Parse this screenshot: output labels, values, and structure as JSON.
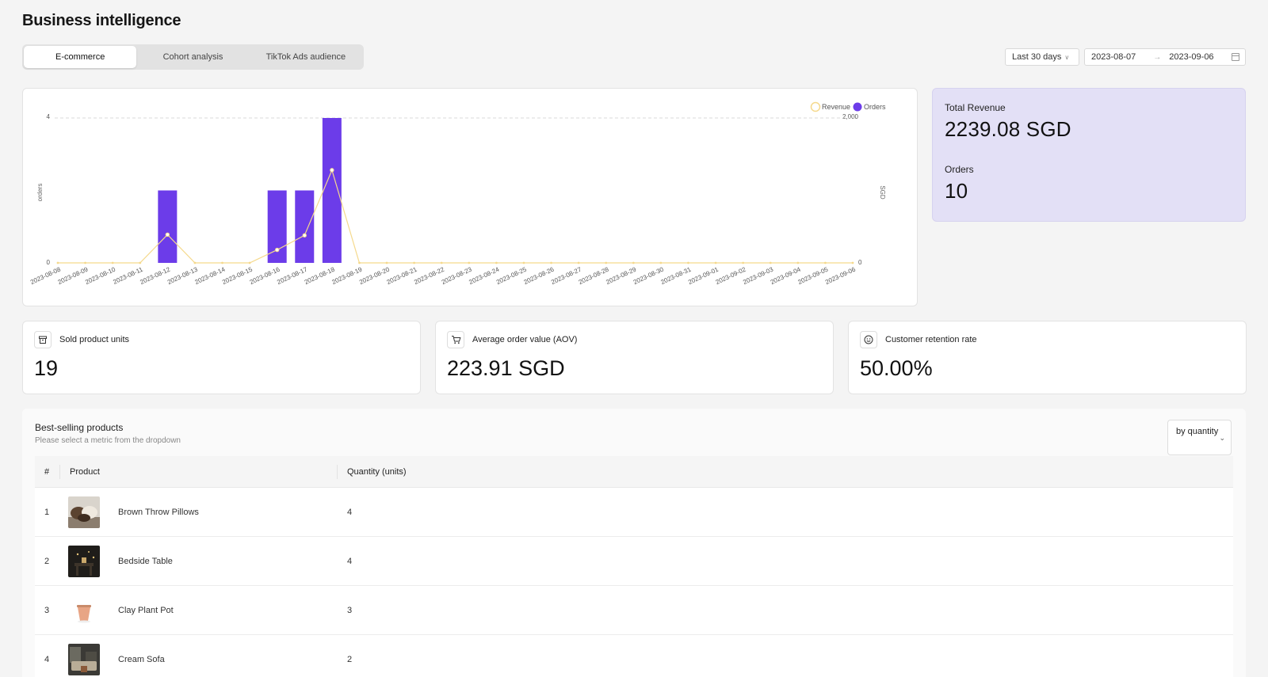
{
  "page_title": "Business intelligence",
  "tabs": [
    {
      "label": "E-commerce",
      "active": true
    },
    {
      "label": "Cohort analysis",
      "active": false
    },
    {
      "label": "TikTok Ads audience",
      "active": false
    }
  ],
  "date_filter": {
    "range_label": "Last 30 days",
    "start_date": "2023-08-07",
    "end_date": "2023-09-06"
  },
  "chart_data": {
    "type": "bar",
    "categories": [
      "2023-08-08",
      "2023-08-09",
      "2023-08-10",
      "2023-08-11",
      "2023-08-12",
      "2023-08-13",
      "2023-08-14",
      "2023-08-15",
      "2023-08-16",
      "2023-08-17",
      "2023-08-18",
      "2023-08-19",
      "2023-08-20",
      "2023-08-21",
      "2023-08-22",
      "2023-08-23",
      "2023-08-24",
      "2023-08-25",
      "2023-08-26",
      "2023-08-27",
      "2023-08-28",
      "2023-08-29",
      "2023-08-30",
      "2023-08-31",
      "2023-09-01",
      "2023-09-02",
      "2023-09-03",
      "2023-09-04",
      "2023-09-05",
      "2023-09-06"
    ],
    "series": [
      {
        "name": "Orders",
        "type": "bar",
        "axis": "left",
        "color": "#6c3ce9",
        "values": [
          0,
          0,
          0,
          0,
          2,
          0,
          0,
          0,
          2,
          2,
          4,
          0,
          0,
          0,
          0,
          0,
          0,
          0,
          0,
          0,
          0,
          0,
          0,
          0,
          0,
          0,
          0,
          0,
          0,
          0
        ]
      },
      {
        "name": "Revenue",
        "type": "line",
        "axis": "right",
        "color": "#f5d98c",
        "values": [
          0,
          0,
          0,
          0,
          390,
          0,
          0,
          0,
          180,
          380,
          1280,
          0,
          0,
          0,
          0,
          0,
          0,
          0,
          0,
          0,
          0,
          0,
          0,
          0,
          0,
          0,
          0,
          0,
          0,
          0
        ]
      }
    ],
    "ylabel_left": "orders",
    "ylabel_right": "SGD",
    "ylim_left": [
      0,
      4
    ],
    "ylim_right": [
      0,
      2000
    ],
    "left_ticks": [
      "0",
      "4"
    ],
    "right_ticks": [
      "0",
      "2,000"
    ],
    "legend": [
      "Revenue",
      "Orders"
    ],
    "legend_position": "top-right",
    "grid": "dashed-top"
  },
  "summary": {
    "revenue_label": "Total Revenue",
    "revenue_value": "2239.08 SGD",
    "orders_label": "Orders",
    "orders_value": "10",
    "background_color": "#e3e0f6"
  },
  "metrics": [
    {
      "icon": "box-icon",
      "label": "Sold product units",
      "value": "19"
    },
    {
      "icon": "cart-icon",
      "label": "Average order value (AOV)",
      "value": "223.91 SGD"
    },
    {
      "icon": "smile-icon",
      "label": "Customer retention rate",
      "value": "50.00%"
    }
  ],
  "best_selling": {
    "title": "Best-selling products",
    "subtitle": "Please select a metric from the dropdown",
    "metric_select": "by quantity",
    "columns": [
      "#",
      "Product",
      "Quantity (units)"
    ],
    "rows": [
      {
        "rank": "1",
        "name": "Brown Throw Pillows",
        "quantity": "4",
        "thumb": "pillows"
      },
      {
        "rank": "2",
        "name": "Bedside Table",
        "quantity": "4",
        "thumb": "table"
      },
      {
        "rank": "3",
        "name": "Clay Plant Pot",
        "quantity": "3",
        "thumb": "pot"
      },
      {
        "rank": "4",
        "name": "Cream Sofa",
        "quantity": "2",
        "thumb": "sofa"
      }
    ]
  }
}
